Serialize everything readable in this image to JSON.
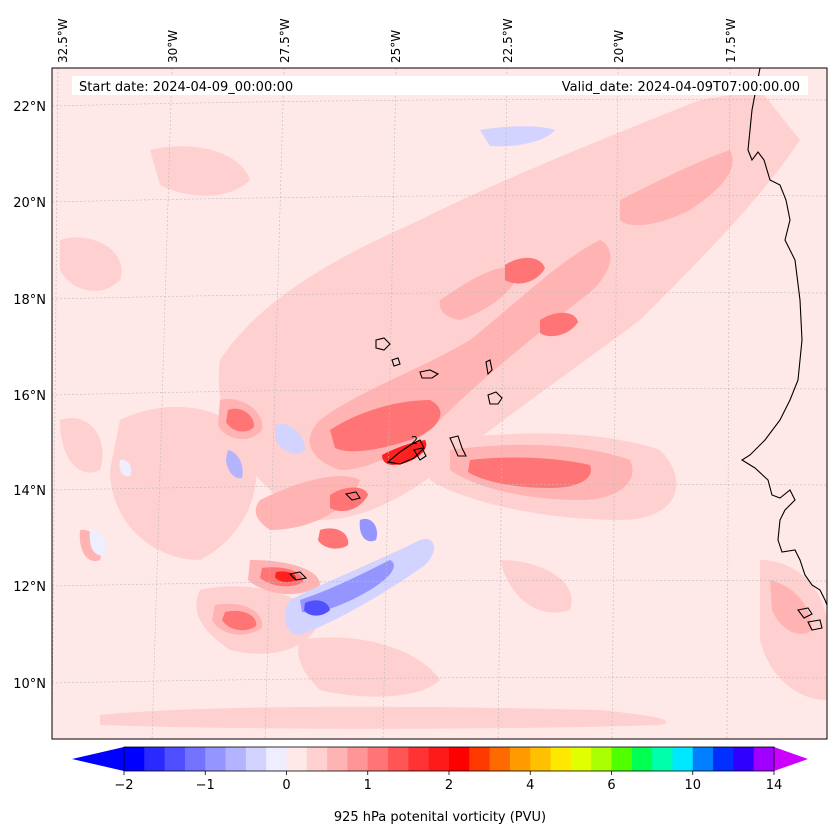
{
  "map": {
    "start_date": "Start date: 2024-04-09_00:00:00",
    "valid_date": "Valid_date: 2024-04-09T07:00:00.00",
    "lon_labels": [
      "32.5°W",
      "30°W",
      "27.5°W",
      "25°W",
      "22.5°W",
      "20°W",
      "17.5°W"
    ],
    "lat_labels": [
      "22°N",
      "20°N",
      "18°N",
      "16°N",
      "14°N",
      "12°N",
      "10°N"
    ],
    "contour_label": "2",
    "field": "potential vorticity",
    "level": "925 hPa"
  },
  "colorbar": {
    "label": "925 hPa potenital vorticity (PVU)",
    "tick_labels": [
      "−2",
      "−1",
      "0",
      "1",
      "2",
      "4",
      "6",
      "10",
      "14"
    ],
    "colors": [
      "#0000ff",
      "#2a2aff",
      "#4f4fff",
      "#7373ff",
      "#9595ff",
      "#b3b3ff",
      "#d3d3ff",
      "#eeeeff",
      "#ffe8e8",
      "#ffd0d0",
      "#ffb3b3",
      "#ff9595",
      "#ff7575",
      "#ff5555",
      "#ff3333",
      "#ff1a1a",
      "#ff0000",
      "#ff3a00",
      "#ff6a00",
      "#ff9a00",
      "#ffc000",
      "#ffe800",
      "#e0ff00",
      "#aaff00",
      "#50ff00",
      "#00ff50",
      "#00ffaa",
      "#00e8ff",
      "#0080ff",
      "#0030ff",
      "#3000ff",
      "#a000ff"
    ],
    "extend_min_color": "#0000ff",
    "extend_max_color": "#cc00ff"
  },
  "colors": {
    "background_field": "#ffe8e8",
    "coast": "#000000",
    "grid": "#bbbbbb",
    "banner_bg": "#ffffff"
  }
}
